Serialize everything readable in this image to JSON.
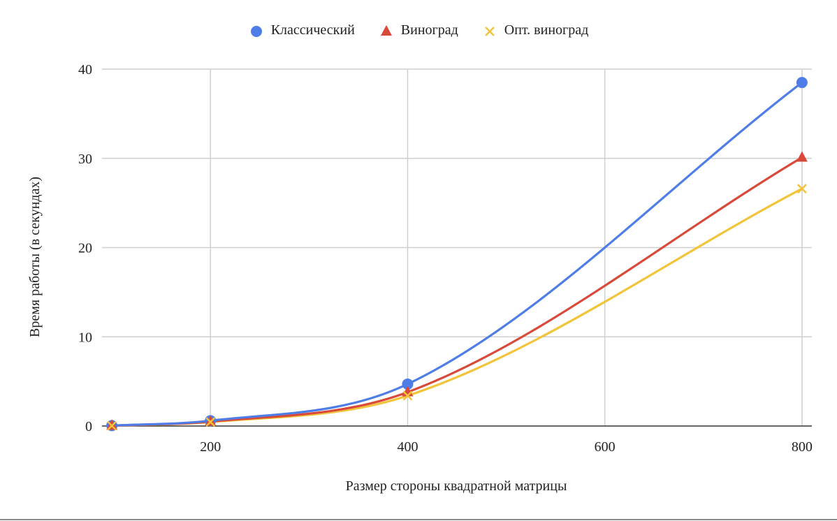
{
  "chart_data": {
    "type": "line",
    "title": "",
    "xlabel": "Размер стороны квадратной матрицы",
    "ylabel": "Время работы (в секундах)",
    "x": [
      100,
      200,
      400,
      800
    ],
    "xlim": [
      90,
      810
    ],
    "ylim": [
      0,
      40
    ],
    "xticks": [
      200,
      400,
      600,
      800
    ],
    "yticks": [
      0,
      10,
      20,
      30,
      40
    ],
    "grid": true,
    "legend_position": "top",
    "series": [
      {
        "name": "Классический",
        "values": [
          0.05,
          0.6,
          4.7,
          38.5
        ],
        "color": "#4e7de8",
        "marker": "circle"
      },
      {
        "name": "Виноград",
        "values": [
          0.04,
          0.5,
          3.8,
          30.1
        ],
        "color": "#d9493a",
        "marker": "triangle"
      },
      {
        "name": "Опт. виноград",
        "values": [
          0.03,
          0.45,
          3.4,
          26.6
        ],
        "color": "#f2c43a",
        "marker": "x"
      }
    ]
  }
}
